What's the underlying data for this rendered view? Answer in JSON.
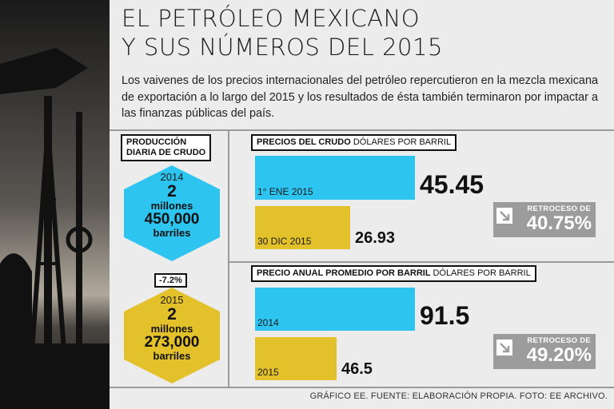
{
  "header": {
    "title_line1": "EL PETRÓLEO MEXICANO",
    "title_line2": "Y SUS NÚMEROS DEL 2015",
    "intro": "Los vaivenes de los precios internacionales del petróleo repercutieron en la mezcla mexicana de exportación a lo largo del 2015 y los resultados de ésta también terminaron por impactar a las finanzas públicas del país."
  },
  "production": {
    "label_line1": "PRODUCCIÓN",
    "label_line2": "DIARIA DE CRUDO",
    "y2014": {
      "year": "2014",
      "number": "2",
      "unit": "millones",
      "amount": "450,000",
      "unit2": "barriles",
      "color": "#2ec4f0"
    },
    "change": "-7.2%",
    "y2015": {
      "year": "2015",
      "number": "2",
      "unit": "millones",
      "amount": "273,000",
      "unit2": "barriles",
      "color": "#e2c12a"
    }
  },
  "source": "GRÁFICO EE. FUENTE: ELABORACIÓN PROPIA. FOTO: EE ARCHIVO.",
  "chart_data": [
    {
      "type": "bar",
      "title": "PRECIOS DEL CRUDO",
      "unit": "DÓLARES POR BARRIL",
      "categories": [
        "1° ENE 2015",
        "30 DIC 2015"
      ],
      "values": [
        45.45,
        26.93
      ],
      "value_labels": [
        "45.45",
        "26.93"
      ],
      "colors": [
        "#2ec4f0",
        "#e2c12a"
      ],
      "ylim": [
        0,
        45.45
      ],
      "badge": {
        "label": "RETROCESO DE",
        "value": "40.75%"
      }
    },
    {
      "type": "bar",
      "title": "PRECIO ANUAL PROMEDIO POR BARRIL",
      "unit": "DÓLARES POR BARRIL",
      "categories": [
        "2014",
        "2015"
      ],
      "values": [
        91.5,
        46.5
      ],
      "value_labels": [
        "91.5",
        "46.5"
      ],
      "colors": [
        "#2ec4f0",
        "#e2c12a"
      ],
      "ylim": [
        0,
        91.5
      ],
      "badge": {
        "label": "RETROCESO DE",
        "value": "49.20%"
      }
    }
  ]
}
